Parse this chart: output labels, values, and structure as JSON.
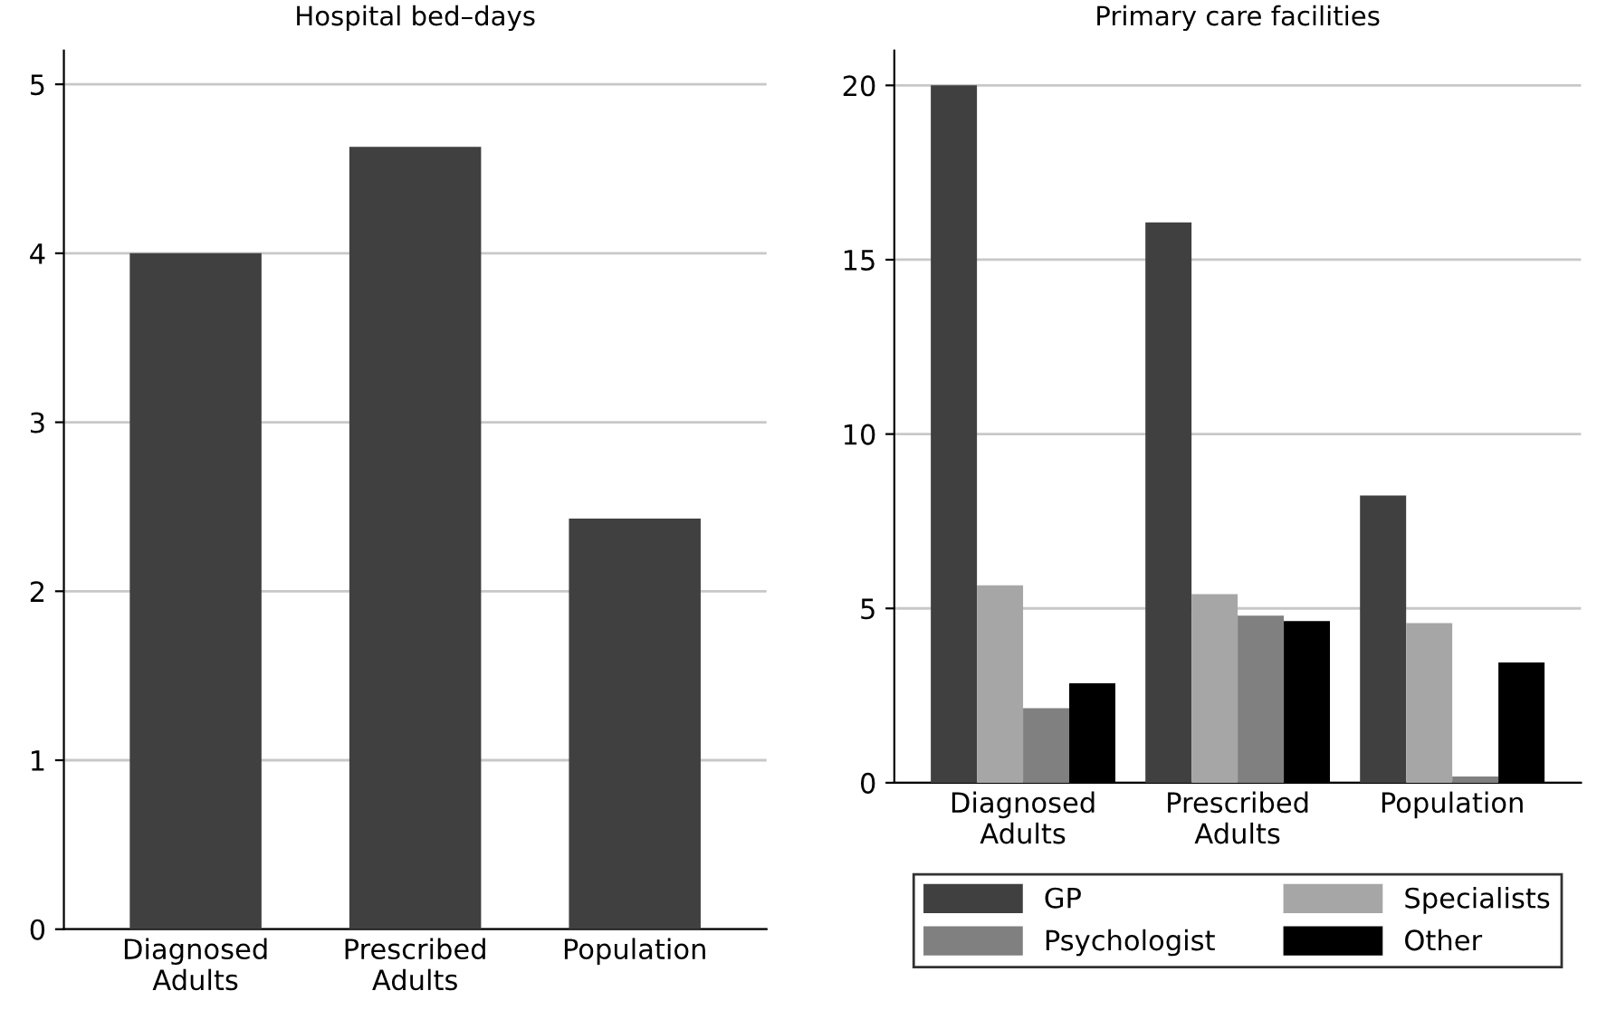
{
  "chart_data": [
    {
      "type": "bar",
      "title": "Hospital bed–days",
      "categories": [
        "Diagnosed\nAdults",
        "Prescribed\nAdults",
        "Population"
      ],
      "values": [
        4.0,
        4.63,
        2.43
      ],
      "color": "#404040",
      "ylim": [
        0,
        5.2
      ],
      "yticks": [
        0,
        1,
        2,
        3,
        4,
        5
      ],
      "grid": "y",
      "legend": false
    },
    {
      "type": "bar",
      "title": "Primary care facilities",
      "categories": [
        "Diagnosed\nAdults",
        "Prescribed\nAdults",
        "Population"
      ],
      "series": [
        {
          "name": "GP",
          "color": "#404040",
          "values": [
            20.0,
            16.07,
            8.24
          ]
        },
        {
          "name": "Specialists",
          "color": "#a6a6a6",
          "values": [
            5.66,
            5.41,
            4.58
          ]
        },
        {
          "name": "Psychologist",
          "color": "#808080",
          "values": [
            2.14,
            4.79,
            0.18
          ]
        },
        {
          "name": "Other",
          "color": "#000000",
          "values": [
            2.85,
            4.64,
            3.45
          ]
        }
      ],
      "ylim": [
        0,
        21
      ],
      "yticks": [
        0,
        5,
        10,
        15,
        20
      ],
      "grid": "y",
      "legend": "bottom"
    }
  ]
}
